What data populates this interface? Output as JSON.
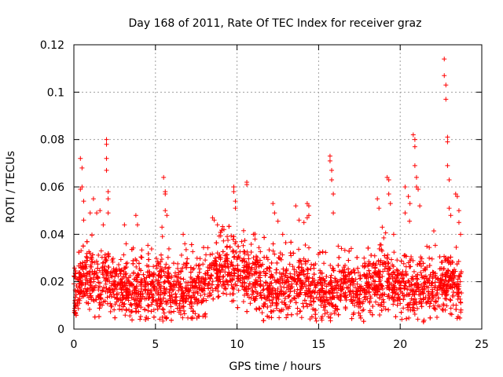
{
  "chart_data": {
    "type": "scatter",
    "title": "Day 168 of 2011, Rate Of TEC Index for receiver graz",
    "xlabel": "GPS time / hours",
    "ylabel": "ROTI / TECUs",
    "xlim": [
      0,
      25
    ],
    "ylim": [
      0,
      0.12
    ],
    "xticks": [
      "0",
      "5",
      "10",
      "15",
      "20",
      "25"
    ],
    "yticks": [
      "0",
      "0.02",
      "0.04",
      "0.06",
      "0.08",
      "0.1",
      "0.12"
    ],
    "grid": true,
    "marker": "plus",
    "color": "#ff0000",
    "series": [
      {
        "values_profile": [
          [
            0.0,
            0.015
          ],
          [
            0.2,
            0.016
          ],
          [
            0.4,
            0.02
          ],
          [
            0.6,
            0.022
          ],
          [
            0.8,
            0.021
          ],
          [
            1.0,
            0.022
          ],
          [
            1.2,
            0.02
          ],
          [
            1.5,
            0.019
          ],
          [
            1.8,
            0.02
          ],
          [
            2.0,
            0.021
          ],
          [
            2.5,
            0.018
          ],
          [
            3.0,
            0.017
          ],
          [
            3.5,
            0.017
          ],
          [
            4.0,
            0.017
          ],
          [
            4.5,
            0.016
          ],
          [
            5.0,
            0.016
          ],
          [
            5.5,
            0.018
          ],
          [
            6.0,
            0.017
          ],
          [
            6.5,
            0.017
          ],
          [
            7.0,
            0.016
          ],
          [
            7.5,
            0.016
          ],
          [
            8.0,
            0.017
          ],
          [
            8.5,
            0.024
          ],
          [
            9.0,
            0.027
          ],
          [
            9.5,
            0.026
          ],
          [
            10.0,
            0.023
          ],
          [
            10.5,
            0.022
          ],
          [
            11.0,
            0.022
          ],
          [
            11.5,
            0.018
          ],
          [
            12.0,
            0.016
          ],
          [
            12.5,
            0.017
          ],
          [
            13.0,
            0.018
          ],
          [
            13.5,
            0.019
          ],
          [
            14.0,
            0.019
          ],
          [
            14.5,
            0.017
          ],
          [
            15.0,
            0.016
          ],
          [
            15.5,
            0.016
          ],
          [
            16.0,
            0.017
          ],
          [
            16.5,
            0.018
          ],
          [
            17.0,
            0.018
          ],
          [
            17.5,
            0.017
          ],
          [
            18.0,
            0.018
          ],
          [
            18.5,
            0.02
          ],
          [
            19.0,
            0.021
          ],
          [
            19.5,
            0.018
          ],
          [
            20.0,
            0.017
          ],
          [
            20.5,
            0.017
          ],
          [
            21.0,
            0.017
          ],
          [
            21.5,
            0.016
          ],
          [
            22.0,
            0.016
          ],
          [
            22.5,
            0.017
          ],
          [
            23.0,
            0.021
          ],
          [
            23.5,
            0.018
          ],
          [
            23.8,
            0.016
          ]
        ],
        "peaks": [
          [
            0.4,
            0.072
          ],
          [
            0.4,
            0.059
          ],
          [
            0.5,
            0.068
          ],
          [
            0.5,
            0.06
          ],
          [
            0.6,
            0.054
          ],
          [
            0.6,
            0.046
          ],
          [
            1.0,
            0.049
          ],
          [
            1.2,
            0.055
          ],
          [
            1.4,
            0.049
          ],
          [
            1.6,
            0.05
          ],
          [
            1.8,
            0.044
          ],
          [
            2.0,
            0.08
          ],
          [
            2.0,
            0.078
          ],
          [
            2.0,
            0.072
          ],
          [
            2.0,
            0.067
          ],
          [
            2.1,
            0.058
          ],
          [
            2.1,
            0.055
          ],
          [
            2.1,
            0.049
          ],
          [
            3.1,
            0.044
          ],
          [
            3.2,
            0.036
          ],
          [
            3.8,
            0.048
          ],
          [
            3.9,
            0.044
          ],
          [
            5.5,
            0.064
          ],
          [
            5.6,
            0.058
          ],
          [
            5.6,
            0.057
          ],
          [
            5.6,
            0.05
          ],
          [
            5.7,
            0.048
          ],
          [
            5.4,
            0.043
          ],
          [
            6.7,
            0.04
          ],
          [
            6.8,
            0.036
          ],
          [
            8.5,
            0.047
          ],
          [
            8.6,
            0.046
          ],
          [
            8.8,
            0.044
          ],
          [
            9.2,
            0.042
          ],
          [
            9.8,
            0.06
          ],
          [
            9.8,
            0.058
          ],
          [
            9.9,
            0.054
          ],
          [
            9.9,
            0.051
          ],
          [
            10.6,
            0.062
          ],
          [
            10.6,
            0.061
          ],
          [
            11.0,
            0.04
          ],
          [
            11.1,
            0.038
          ],
          [
            12.2,
            0.053
          ],
          [
            12.3,
            0.049
          ],
          [
            12.8,
            0.04
          ],
          [
            13.6,
            0.052
          ],
          [
            13.8,
            0.046
          ],
          [
            14.1,
            0.045
          ],
          [
            14.3,
            0.053
          ],
          [
            14.4,
            0.052
          ],
          [
            14.4,
            0.048
          ],
          [
            14.3,
            0.047
          ],
          [
            15.7,
            0.073
          ],
          [
            15.7,
            0.071
          ],
          [
            15.8,
            0.067
          ],
          [
            15.8,
            0.063
          ],
          [
            15.9,
            0.057
          ],
          [
            15.9,
            0.049
          ],
          [
            16.2,
            0.035
          ],
          [
            16.4,
            0.034
          ],
          [
            17.0,
            0.034
          ],
          [
            18.6,
            0.055
          ],
          [
            18.7,
            0.051
          ],
          [
            18.9,
            0.043
          ],
          [
            19.2,
            0.064
          ],
          [
            19.3,
            0.063
          ],
          [
            19.3,
            0.057
          ],
          [
            19.4,
            0.053
          ],
          [
            19.6,
            0.04
          ],
          [
            20.3,
            0.06
          ],
          [
            20.3,
            0.049
          ],
          [
            20.5,
            0.056
          ],
          [
            20.6,
            0.053
          ],
          [
            20.8,
            0.082
          ],
          [
            20.9,
            0.08
          ],
          [
            20.9,
            0.077
          ],
          [
            20.9,
            0.069
          ],
          [
            21.0,
            0.064
          ],
          [
            21.0,
            0.06
          ],
          [
            21.1,
            0.059
          ],
          [
            21.2,
            0.052
          ],
          [
            22.7,
            0.114
          ],
          [
            22.7,
            0.107
          ],
          [
            22.8,
            0.103
          ],
          [
            22.8,
            0.097
          ],
          [
            22.9,
            0.081
          ],
          [
            22.9,
            0.079
          ],
          [
            22.9,
            0.069
          ],
          [
            23.0,
            0.063
          ],
          [
            23.0,
            0.051
          ],
          [
            23.1,
            0.048
          ],
          [
            23.4,
            0.057
          ],
          [
            23.5,
            0.056
          ],
          [
            23.6,
            0.05
          ],
          [
            23.6,
            0.045
          ],
          [
            23.7,
            0.04
          ]
        ]
      }
    ]
  }
}
